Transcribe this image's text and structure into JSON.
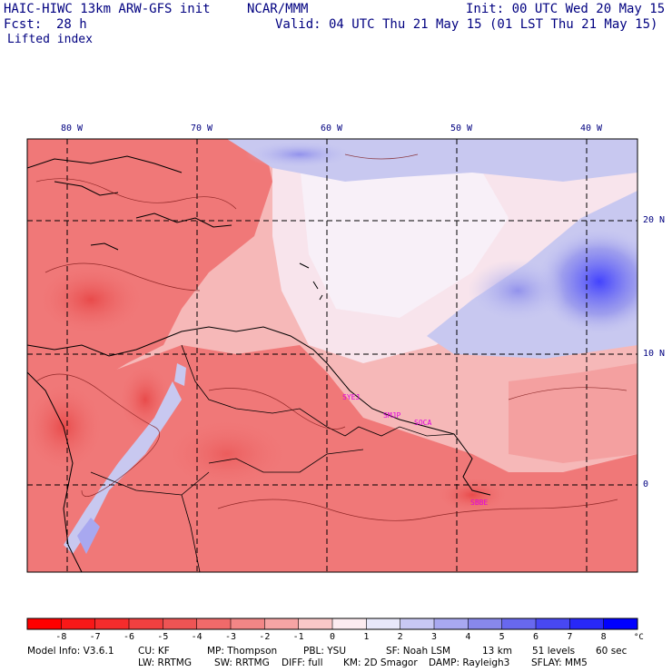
{
  "header": {
    "model": "HAIC-HIWC 13km ARW-GFS init",
    "center": "NCAR/MMM",
    "init": "Init: 00 UTC Wed 20 May 15",
    "fcst_label": "Fcst:",
    "fcst_hours": "28 h",
    "valid": "Valid: 04 UTC Thu 21 May 15 (01 LST Thu 21 May 15)",
    "field": "Lifted index"
  },
  "map": {
    "lon_labels": [
      "80 W",
      "70 W",
      "60 W",
      "50 W",
      "40 W"
    ],
    "lat_labels": [
      "20 N",
      "10 N",
      "0"
    ],
    "stations": [
      {
        "id": "SYEJ",
        "color": "#e000e0"
      },
      {
        "id": "SMJP",
        "color": "#e000e0"
      },
      {
        "id": "SOCA",
        "color": "#e000e0"
      },
      {
        "id": "SBBE",
        "color": "#e000e0"
      }
    ],
    "colors": {
      "strong_neg": "#e84848",
      "mid_neg": "#f07878",
      "weak_neg": "#f8c0c0",
      "neutral": "#f8f0f8",
      "weak_pos": "#c8c8f0",
      "mid_pos": "#8c8cec",
      "strong_pos": "#3c3cff"
    }
  },
  "colorbar": {
    "tick_labels": [
      "-8",
      "-7",
      "-6",
      "-5",
      "-4",
      "-3",
      "-2",
      "-1",
      "0",
      "1",
      "2",
      "3",
      "4",
      "5",
      "6",
      "7",
      "8"
    ],
    "unit": "°C",
    "colors": [
      "#ff0000",
      "#f81818",
      "#f42c2c",
      "#f04040",
      "#ee5454",
      "#f06a6a",
      "#f28686",
      "#f6a4a4",
      "#fac8c8",
      "#fcecf0",
      "#e8e8fa",
      "#c8c8f4",
      "#a8a8f0",
      "#8888ec",
      "#6868ee",
      "#4848f2",
      "#2828f8",
      "#0000ff"
    ]
  },
  "footer": {
    "line1": [
      "Model Info: V3.6.1",
      "CU: KF",
      "MP: Thompson",
      "PBL: YSU",
      "SF: Noah LSM",
      "13 km",
      "51 levels",
      "60 sec"
    ],
    "line2": [
      "LW: RRTMG",
      "SW: RRTMG",
      "DIFF: full",
      "KM: 2D Smagor",
      "DAMP: Rayleigh3",
      "SFLAY: MM5"
    ]
  }
}
